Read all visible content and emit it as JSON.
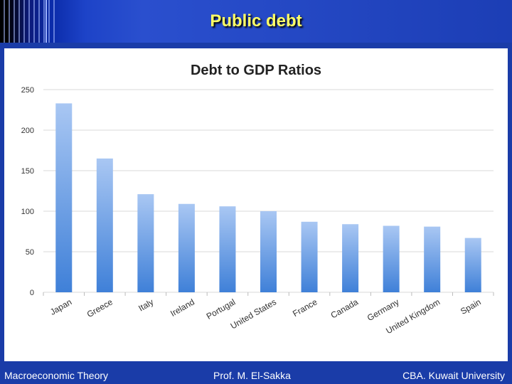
{
  "slide": {
    "title": "Public debt",
    "footer_left": "Macroeconomic Theory",
    "footer_center": "Prof. M. El-Sakka",
    "footer_right": "CBA. Kuwait University"
  },
  "colors": {
    "bar_top": "#a9c7f3",
    "bar_bottom": "#3f80d8",
    "title_yellow": "#ffff66",
    "frame_blue": "#1a3ca8"
  },
  "chart_data": {
    "type": "bar",
    "title": "Debt to GDP Ratios",
    "xlabel": "",
    "ylabel": "",
    "ylim": [
      0,
      250
    ],
    "yticks": [
      0,
      50,
      100,
      150,
      200,
      250
    ],
    "grid": true,
    "legend": "none",
    "categories": [
      "Japan",
      "Greece",
      "Italy",
      "Ireland",
      "Portugal",
      "United States",
      "France",
      "Canada",
      "Germany",
      "United Kingdom",
      "Spain"
    ],
    "values": [
      233,
      165,
      121,
      109,
      106,
      100,
      87,
      84,
      82,
      81,
      67
    ]
  }
}
